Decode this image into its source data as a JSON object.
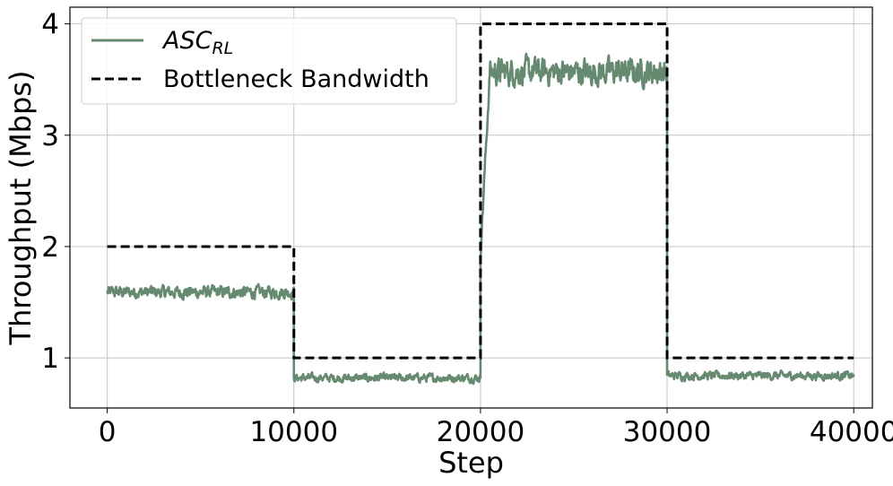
{
  "chart_data": {
    "type": "line",
    "xlabel": "Step",
    "ylabel": "Throughput (Mbps)",
    "xlim": [
      -2000,
      41000
    ],
    "ylim": [
      0.55,
      4.15
    ],
    "xticks": [
      0,
      10000,
      20000,
      30000,
      40000
    ],
    "xtick_labels": [
      "0",
      "10000",
      "20000",
      "30000",
      "40000"
    ],
    "yticks": [
      1,
      2,
      3,
      4
    ],
    "ytick_labels": [
      "1",
      "2",
      "3",
      "4"
    ],
    "grid": true,
    "legend": {
      "placement": "top-left",
      "entries": [
        {
          "label_main": "ASC",
          "label_sub": "RL",
          "series": 0
        },
        {
          "label": "Bottleneck Bandwidth",
          "series": 1
        }
      ]
    },
    "series": [
      {
        "name": "ASC_RL",
        "color": "#668a70",
        "style": "solid",
        "segments": [
          {
            "x_start": 0,
            "x_end": 10000,
            "mean": 1.59,
            "noise": 0.06
          },
          {
            "x_start": 10000,
            "x_end": 20000,
            "mean": 0.82,
            "noise": 0.04
          },
          {
            "x_start": 20000,
            "x_end": 20500,
            "mean_start": 1.95,
            "mean_end": 3.55,
            "noise": 0.08
          },
          {
            "x_start": 20500,
            "x_end": 30000,
            "mean": 3.57,
            "noise": 0.13
          },
          {
            "x_start": 30000,
            "x_end": 40000,
            "mean": 0.84,
            "noise": 0.04
          }
        ]
      },
      {
        "name": "Bottleneck Bandwidth",
        "color": "#000000",
        "style": "dashed",
        "x": [
          0,
          10000,
          10000,
          20000,
          20000,
          30000,
          30000,
          40000
        ],
        "y": [
          2,
          2,
          1,
          1,
          4,
          4,
          1,
          1
        ]
      }
    ]
  }
}
